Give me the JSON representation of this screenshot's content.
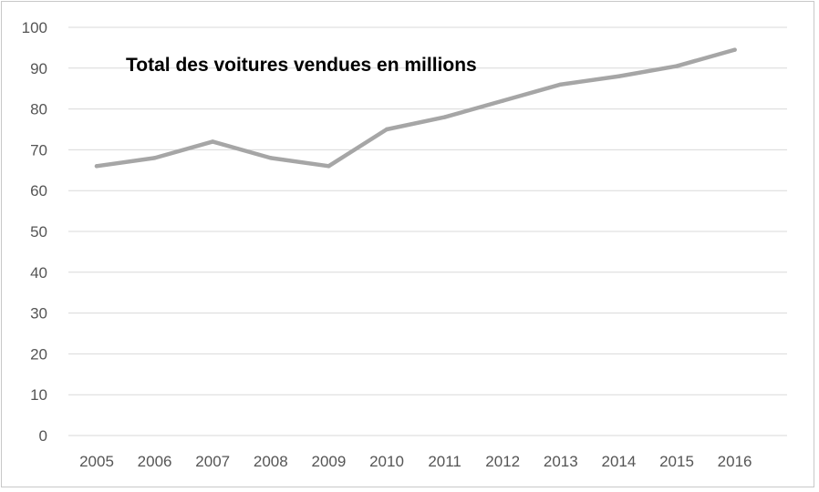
{
  "chart_data": {
    "type": "line",
    "title": "Total des voitures vendues en millions",
    "xlabel": "",
    "ylabel": "",
    "categories": [
      "2005",
      "2006",
      "2007",
      "2008",
      "2009",
      "2010",
      "2011",
      "2012",
      "2013",
      "2014",
      "2015",
      "2016"
    ],
    "series": [
      {
        "values": [
          66,
          68,
          72,
          68,
          66,
          75,
          78,
          82,
          86,
          88,
          90.5,
          94.5
        ]
      }
    ],
    "ylim": [
      0,
      100
    ],
    "yticks": [
      "0",
      "10",
      "20",
      "30",
      "40",
      "50",
      "60",
      "70",
      "80",
      "90",
      "100"
    ],
    "grid": true,
    "legend": "none",
    "colors": {
      "line": "#a6a6a6",
      "grid": "#d9d9d9",
      "text": "#555555"
    }
  }
}
